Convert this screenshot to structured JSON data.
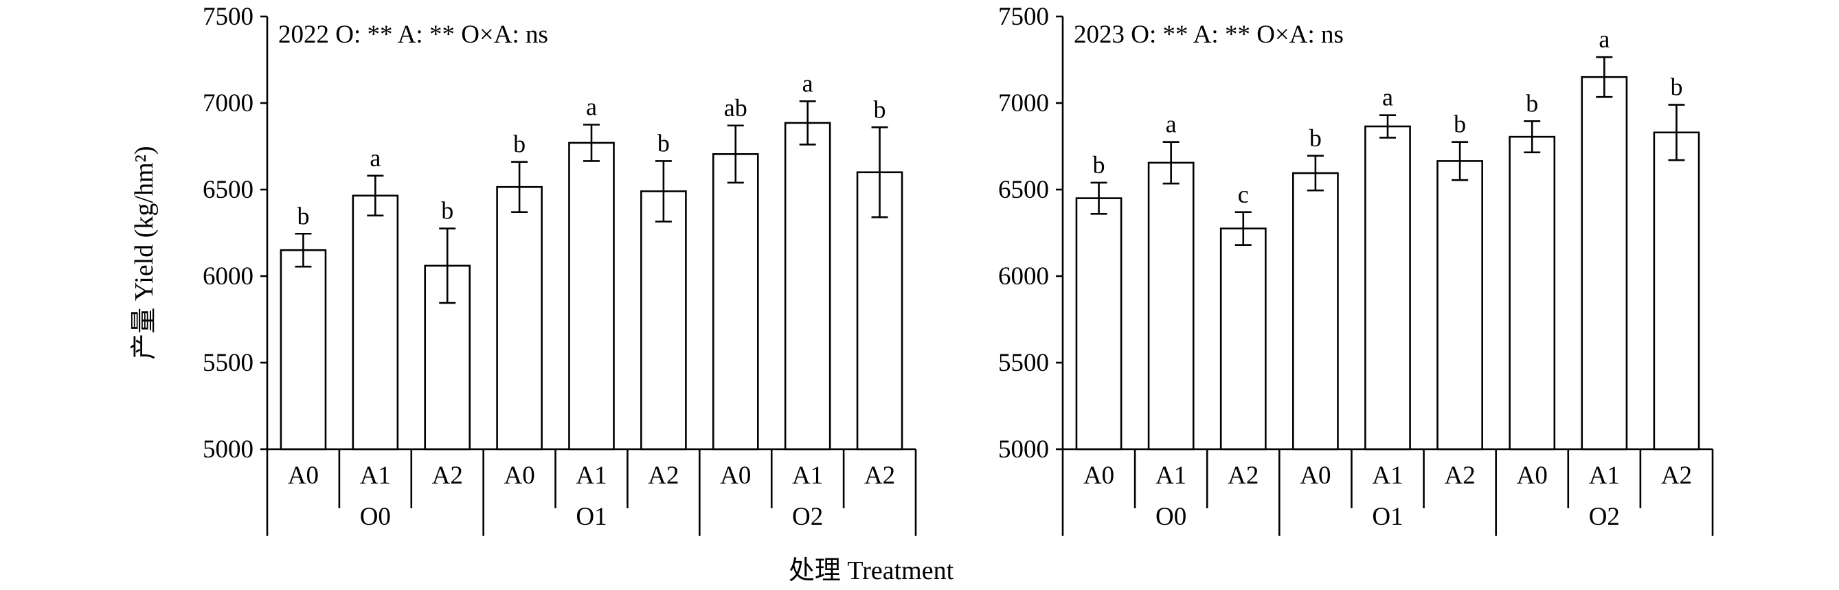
{
  "figure": {
    "ylabel": "产量 Yield (kg/hm²)",
    "xlabel": "处理 Treatment"
  },
  "chart_data": [
    {
      "type": "bar",
      "annotation": "2022  O: **  A: **  O×A: ns",
      "ylim": [
        5000,
        7500
      ],
      "yticks": [
        "5000",
        "5500",
        "6000",
        "6500",
        "7000",
        "7500"
      ],
      "groups": [
        "O0",
        "O1",
        "O2"
      ],
      "categories": [
        "A0",
        "A1",
        "A2",
        "A0",
        "A1",
        "A2",
        "A0",
        "A1",
        "A2"
      ],
      "values": [
        6150,
        6465,
        6060,
        6515,
        6770,
        6490,
        6705,
        6885,
        6600
      ],
      "errors": [
        95,
        115,
        215,
        145,
        105,
        175,
        165,
        125,
        260
      ],
      "letters": [
        "b",
        "a",
        "b",
        "b",
        "a",
        "b",
        "ab",
        "a",
        "b"
      ],
      "grid": false
    },
    {
      "type": "bar",
      "annotation": "2023  O: **  A: **  O×A: ns",
      "ylim": [
        5000,
        7500
      ],
      "yticks": [
        "5000",
        "5500",
        "6000",
        "6500",
        "7000",
        "7500"
      ],
      "groups": [
        "O0",
        "O1",
        "O2"
      ],
      "categories": [
        "A0",
        "A1",
        "A2",
        "A0",
        "A1",
        "A2",
        "A0",
        "A1",
        "A2"
      ],
      "values": [
        6450,
        6655,
        6275,
        6595,
        6865,
        6665,
        6805,
        7150,
        6830
      ],
      "errors": [
        90,
        120,
        95,
        100,
        65,
        110,
        90,
        115,
        160
      ],
      "letters": [
        "b",
        "a",
        "c",
        "b",
        "a",
        "b",
        "b",
        "a",
        "b"
      ],
      "grid": false
    }
  ]
}
